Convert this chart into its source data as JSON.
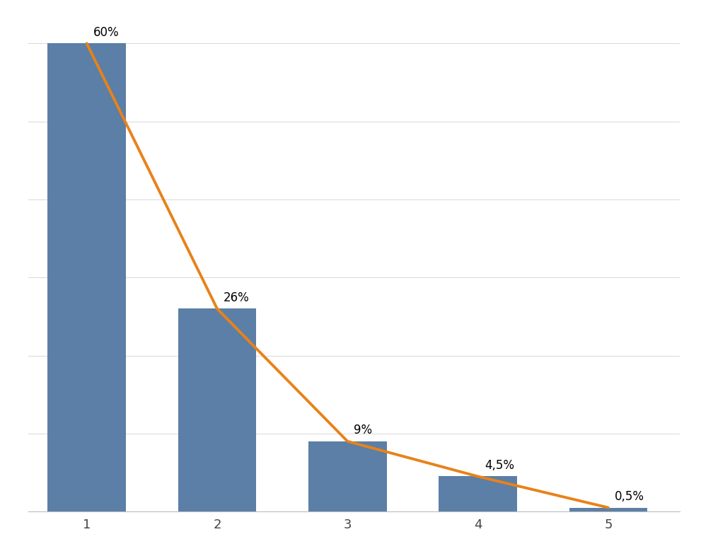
{
  "categories": [
    1,
    2,
    3,
    4,
    5
  ],
  "values": [
    60,
    26,
    9,
    4.5,
    0.5
  ],
  "labels": [
    "60%",
    "26%",
    "9%",
    "4,5%",
    "0,5%"
  ],
  "bar_color": "#5b7fa6",
  "line_color": "#e8821a",
  "background_color": "#ffffff",
  "ylim": [
    0,
    62
  ],
  "line_width": 2.8,
  "label_fontsize": 12,
  "tick_fontsize": 13,
  "grid_color": "#d8d8d8",
  "bar_width": 0.6
}
